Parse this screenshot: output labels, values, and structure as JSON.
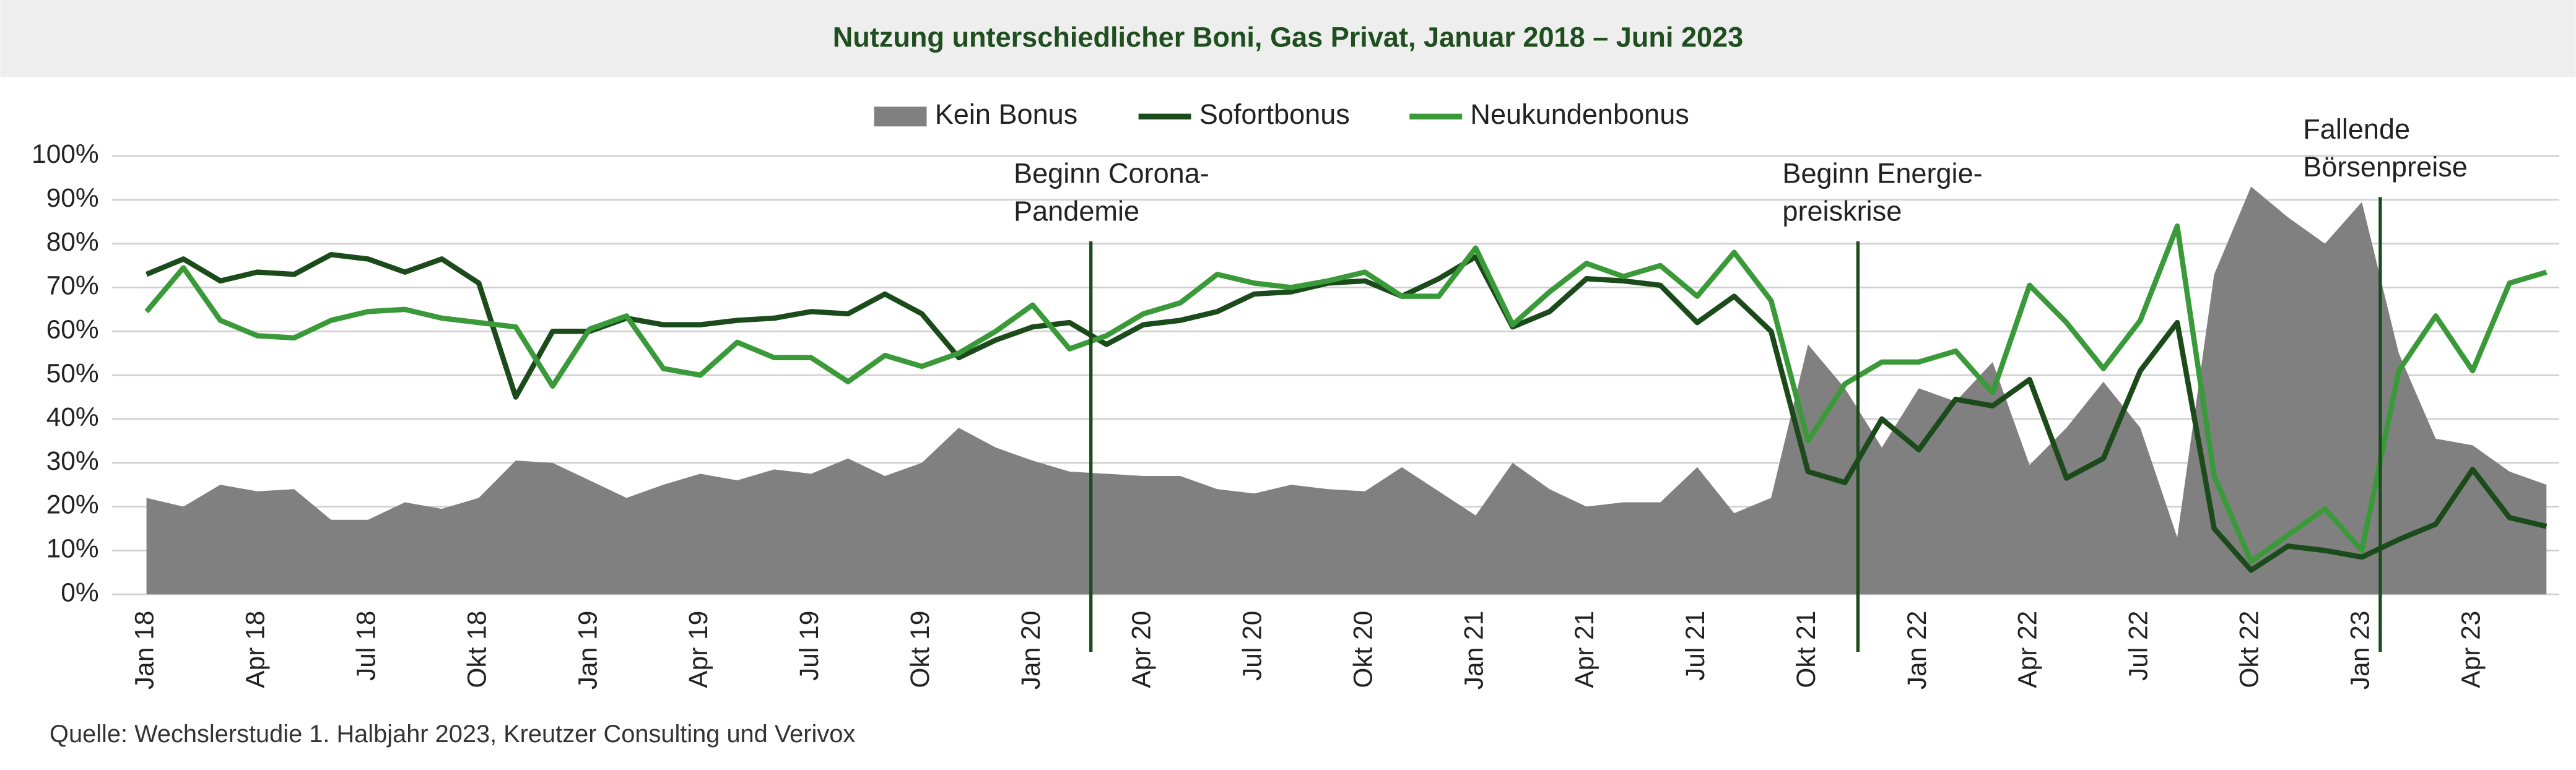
{
  "chart_data": {
    "type": "line",
    "title": "Nutzung unterschiedlicher Boni, Gas Privat, Januar 2018 – Juni 2023",
    "source": "Quelle: Wechslerstudie 1. Halbjahr 2023, Kreutzer Consulting und Verivox",
    "categories": [
      "Jan 18",
      null,
      null,
      "Apr 18",
      null,
      null,
      "Jul 18",
      null,
      null,
      "Okt 18",
      null,
      null,
      "Jan 19",
      null,
      null,
      "Apr 19",
      null,
      null,
      "Jul 19",
      null,
      null,
      "Okt 19",
      null,
      null,
      "Jan 20",
      null,
      null,
      "Apr 20",
      null,
      null,
      "Jul 20",
      null,
      null,
      "Okt 20",
      null,
      null,
      "Jan 21",
      null,
      null,
      "Apr 21",
      null,
      null,
      "Jul 21",
      null,
      null,
      "Okt 21",
      null,
      null,
      "Jan 22",
      null,
      null,
      "Apr 22",
      null,
      null,
      "Jul 22",
      null,
      null,
      "Okt 22",
      null,
      null,
      "Jan 23",
      null,
      null,
      "Apr 23",
      null,
      null
    ],
    "series": [
      {
        "name": "Kein Bonus",
        "color": "#808080",
        "style": "area",
        "values": [
          22,
          20,
          25,
          23.5,
          24,
          17,
          17,
          21,
          19.5,
          22,
          30.5,
          30,
          26,
          22,
          25,
          27.5,
          26,
          28.5,
          27.5,
          31,
          27,
          30,
          38,
          33.5,
          30.5,
          28,
          27.5,
          27,
          27,
          24,
          23,
          25,
          24,
          23.5,
          29,
          23.5,
          18,
          30,
          24,
          20,
          21,
          21,
          29,
          18.5,
          22,
          57,
          47,
          33.5,
          47,
          44,
          53,
          29.5,
          38,
          48.5,
          38,
          13,
          73,
          93,
          86,
          80,
          89.5,
          55,
          35.5,
          34,
          28,
          25
        ]
      },
      {
        "name": "Sofortbonus",
        "color": "#1b4a1b",
        "style": "line",
        "values": [
          73,
          76.5,
          71.5,
          73.5,
          73,
          77.5,
          76.5,
          73.5,
          76.5,
          71,
          45,
          60,
          60,
          63,
          61.5,
          61.5,
          62.5,
          63,
          64.5,
          64,
          68.5,
          64,
          54,
          58,
          61,
          62,
          57,
          61.5,
          62.5,
          64.5,
          68.5,
          69,
          71,
          71.5,
          68,
          72,
          77,
          61,
          64.5,
          72,
          71.5,
          70.5,
          62,
          68,
          60,
          28,
          25.5,
          40,
          33,
          44.5,
          43,
          49,
          26.5,
          31,
          51,
          62,
          15,
          5.5,
          11,
          10,
          8.5,
          12.5,
          16,
          28.5,
          17.5,
          15.5
        ]
      },
      {
        "name": "Neukundenbonus",
        "color": "#3a9a3a",
        "style": "line",
        "values": [
          64.5,
          74.5,
          62.5,
          59,
          58.5,
          62.5,
          64.5,
          65,
          63,
          62,
          61,
          47.5,
          60.5,
          63.5,
          51.5,
          50,
          57.5,
          54,
          54,
          48.5,
          54.5,
          52,
          55,
          60,
          66,
          56,
          59,
          64,
          66.5,
          73,
          71,
          70,
          71.5,
          73.5,
          68,
          68,
          79,
          61.5,
          69,
          75.5,
          72.5,
          75,
          68,
          78,
          67,
          35,
          48,
          53,
          53,
          55.5,
          46,
          70.5,
          62,
          51.5,
          62.5,
          84,
          27,
          7.5,
          13.5,
          19.5,
          10,
          51,
          63.5,
          51,
          71,
          73.5
        ]
      }
    ],
    "annotations": [
      {
        "lines": [
          "Beginn Corona-",
          "Pandemie"
        ]
      },
      {
        "lines": [
          "Beginn Energie-",
          "preiskrise"
        ]
      },
      {
        "lines": [
          "Fallende",
          "Börsenpreise"
        ]
      }
    ],
    "ylim": [
      0,
      100
    ],
    "yticks": [
      {
        "value": 0,
        "label": "0%"
      },
      {
        "value": 10,
        "label": "10%"
      },
      {
        "value": 20,
        "label": "20%"
      },
      {
        "value": 30,
        "label": "30%"
      },
      {
        "value": 40,
        "label": "40%"
      },
      {
        "value": 50,
        "label": "50%"
      },
      {
        "value": 60,
        "label": "60%"
      },
      {
        "value": 70,
        "label": "70%"
      },
      {
        "value": 80,
        "label": "80%"
      },
      {
        "value": 90,
        "label": "90%"
      },
      {
        "value": 100,
        "label": "100%"
      }
    ],
    "grid": true
  }
}
